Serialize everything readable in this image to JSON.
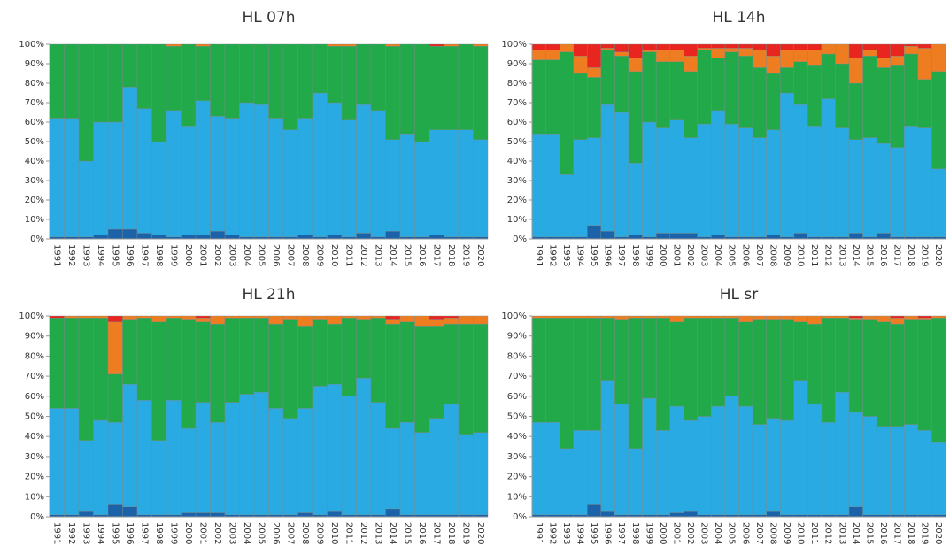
{
  "chart_data": [
    {
      "type": "bar",
      "title": "HL 07h",
      "stacked": true,
      "categories": [
        "1991",
        "1992",
        "1993",
        "1994",
        "1995",
        "1996",
        "1997",
        "1998",
        "1999",
        "2000",
        "2001",
        "2002",
        "2003",
        "2004",
        "2005",
        "2006",
        "2007",
        "2008",
        "2009",
        "2010",
        "2011",
        "2012",
        "2013",
        "2014",
        "2015",
        "2016",
        "2017",
        "2018",
        "2019",
        "2020"
      ],
      "ylim": [
        0,
        100
      ],
      "yticks": [
        {
          "value": 0,
          "label": "0%"
        },
        {
          "value": 10,
          "label": "10%"
        },
        {
          "value": 20,
          "label": "20%"
        },
        {
          "value": 30,
          "label": "30%"
        },
        {
          "value": 40,
          "label": "40%"
        },
        {
          "value": 50,
          "label": "50%"
        },
        {
          "value": 60,
          "label": "60%"
        },
        {
          "value": 70,
          "label": "70%"
        },
        {
          "value": 80,
          "label": "80%"
        },
        {
          "value": 90,
          "label": "90%"
        },
        {
          "value": 100,
          "label": "100%"
        }
      ],
      "series": [
        {
          "color": "#1b62a8",
          "values": [
            1,
            1,
            1,
            2,
            5,
            5,
            3,
            2,
            1,
            2,
            2,
            4,
            2,
            1,
            1,
            1,
            1,
            2,
            1,
            2,
            1,
            3,
            1,
            4,
            1,
            1,
            2,
            1,
            1,
            1
          ]
        },
        {
          "color": "#29aae2",
          "values": [
            61,
            61,
            39,
            58,
            55,
            73,
            64,
            48,
            65,
            56,
            69,
            59,
            60,
            69,
            68,
            61,
            55,
            60,
            74,
            68,
            60,
            66,
            65,
            47,
            53,
            49,
            54,
            55,
            55,
            50
          ]
        },
        {
          "color": "#22a94a",
          "values": [
            38,
            38,
            60,
            40,
            40,
            22,
            33,
            50,
            33,
            42,
            28,
            37,
            38,
            30,
            31,
            38,
            44,
            38,
            25,
            29,
            38,
            31,
            34,
            48,
            46,
            50,
            43,
            43,
            44,
            48
          ]
        },
        {
          "color": "#ee7d22",
          "values": [
            0,
            0,
            0,
            0,
            0,
            0,
            0,
            0,
            1,
            0,
            1,
            0,
            0,
            0,
            0,
            0,
            0,
            0,
            0,
            1,
            1,
            0,
            0,
            1,
            0,
            0,
            0,
            1,
            0,
            1
          ]
        },
        {
          "color": "#e8251e",
          "values": [
            0,
            0,
            0,
            0,
            0,
            0,
            0,
            0,
            0,
            0,
            0,
            0,
            0,
            0,
            0,
            0,
            0,
            0,
            0,
            0,
            0,
            0,
            0,
            0,
            0,
            0,
            1,
            0,
            0,
            0
          ]
        }
      ]
    },
    {
      "type": "bar",
      "title": "HL 14h",
      "stacked": true,
      "categories": [
        "1991",
        "1992",
        "1993",
        "1994",
        "1995",
        "1996",
        "1997",
        "1998",
        "1999",
        "2000",
        "2001",
        "2002",
        "2003",
        "2004",
        "2005",
        "2006",
        "2007",
        "2008",
        "2009",
        "2010",
        "2011",
        "2012",
        "2013",
        "2014",
        "2015",
        "2016",
        "2017",
        "2018",
        "2019",
        "2020"
      ],
      "ylim": [
        0,
        100
      ],
      "yticks": [
        {
          "value": 0,
          "label": "0%"
        },
        {
          "value": 10,
          "label": "10%"
        },
        {
          "value": 20,
          "label": "20%"
        },
        {
          "value": 30,
          "label": "30%"
        },
        {
          "value": 40,
          "label": "40%"
        },
        {
          "value": 50,
          "label": "50%"
        },
        {
          "value": 60,
          "label": "60%"
        },
        {
          "value": 70,
          "label": "70%"
        },
        {
          "value": 80,
          "label": "80%"
        },
        {
          "value": 90,
          "label": "90%"
        },
        {
          "value": 100,
          "label": "100%"
        }
      ],
      "series": [
        {
          "color": "#1b62a8",
          "values": [
            1,
            1,
            1,
            1,
            7,
            4,
            1,
            2,
            1,
            3,
            3,
            3,
            1,
            2,
            1,
            1,
            1,
            2,
            1,
            3,
            1,
            1,
            1,
            3,
            1,
            3,
            1,
            1,
            1,
            1
          ]
        },
        {
          "color": "#29aae2",
          "values": [
            53,
            53,
            32,
            50,
            45,
            65,
            64,
            37,
            59,
            54,
            58,
            49,
            58,
            64,
            58,
            56,
            51,
            54,
            74,
            66,
            57,
            71,
            56,
            48,
            51,
            46,
            46,
            57,
            56,
            35
          ]
        },
        {
          "color": "#22a94a",
          "values": [
            38,
            38,
            63,
            34,
            31,
            28,
            29,
            47,
            36,
            34,
            30,
            34,
            38,
            27,
            37,
            37,
            36,
            29,
            13,
            22,
            31,
            23,
            33,
            29,
            42,
            39,
            42,
            37,
            25,
            50
          ]
        },
        {
          "color": "#ee7d22",
          "values": [
            5,
            5,
            4,
            9,
            5,
            1,
            2,
            7,
            1,
            6,
            6,
            8,
            1,
            5,
            2,
            4,
            9,
            9,
            9,
            6,
            8,
            5,
            10,
            13,
            3,
            5,
            5,
            4,
            16,
            14
          ]
        },
        {
          "color": "#e8251e",
          "values": [
            3,
            3,
            0,
            6,
            12,
            2,
            4,
            7,
            3,
            3,
            3,
            6,
            2,
            2,
            2,
            2,
            3,
            6,
            3,
            3,
            3,
            0,
            0,
            7,
            3,
            7,
            6,
            1,
            2,
            0
          ]
        }
      ]
    },
    {
      "type": "bar",
      "title": "HL 21h",
      "stacked": true,
      "categories": [
        "1991",
        "1992",
        "1993",
        "1994",
        "1995",
        "1996",
        "1997",
        "1998",
        "1999",
        "2000",
        "2001",
        "2002",
        "2003",
        "2004",
        "2005",
        "2006",
        "2007",
        "2008",
        "2009",
        "2010",
        "2011",
        "2012",
        "2013",
        "2014",
        "2015",
        "2016",
        "2017",
        "2018",
        "2019",
        "2020"
      ],
      "ylim": [
        0,
        100
      ],
      "yticks": [
        {
          "value": 0,
          "label": "0%"
        },
        {
          "value": 10,
          "label": "10%"
        },
        {
          "value": 20,
          "label": "20%"
        },
        {
          "value": 30,
          "label": "30%"
        },
        {
          "value": 40,
          "label": "40%"
        },
        {
          "value": 50,
          "label": "50%"
        },
        {
          "value": 60,
          "label": "60%"
        },
        {
          "value": 70,
          "label": "70%"
        },
        {
          "value": 80,
          "label": "80%"
        },
        {
          "value": 90,
          "label": "90%"
        },
        {
          "value": 100,
          "label": "100%"
        }
      ],
      "series": [
        {
          "color": "#1b62a8",
          "values": [
            1,
            1,
            3,
            1,
            6,
            5,
            1,
            1,
            1,
            2,
            2,
            2,
            1,
            1,
            1,
            1,
            1,
            2,
            1,
            3,
            1,
            1,
            1,
            4,
            1,
            1,
            1,
            1,
            1,
            1
          ]
        },
        {
          "color": "#29aae2",
          "values": [
            53,
            53,
            35,
            47,
            41,
            61,
            57,
            37,
            57,
            42,
            55,
            45,
            56,
            60,
            61,
            53,
            48,
            52,
            64,
            63,
            59,
            68,
            56,
            40,
            46,
            41,
            48,
            55,
            40,
            41
          ]
        },
        {
          "color": "#22a94a",
          "values": [
            45,
            45,
            61,
            51,
            24,
            32,
            41,
            59,
            41,
            54,
            40,
            49,
            42,
            38,
            37,
            42,
            49,
            41,
            33,
            30,
            39,
            29,
            42,
            52,
            50,
            53,
            46,
            40,
            55,
            54
          ]
        },
        {
          "color": "#ee7d22",
          "values": [
            0,
            1,
            1,
            1,
            26,
            2,
            1,
            3,
            1,
            2,
            2,
            4,
            1,
            1,
            1,
            4,
            2,
            5,
            2,
            4,
            1,
            2,
            1,
            2,
            3,
            5,
            3,
            3,
            4,
            4
          ]
        },
        {
          "color": "#e8251e",
          "values": [
            1,
            0,
            0,
            0,
            3,
            0,
            0,
            0,
            0,
            0,
            1,
            0,
            0,
            0,
            0,
            0,
            0,
            0,
            0,
            0,
            0,
            0,
            0,
            2,
            0,
            0,
            2,
            1,
            0,
            0
          ]
        }
      ]
    },
    {
      "type": "bar",
      "title": "HL sr",
      "stacked": true,
      "categories": [
        "1991",
        "1992",
        "1993",
        "1994",
        "1995",
        "1996",
        "1997",
        "1998",
        "1999",
        "2000",
        "2001",
        "2002",
        "2003",
        "2004",
        "2005",
        "2006",
        "2007",
        "2008",
        "2009",
        "2010",
        "2011",
        "2012",
        "2013",
        "2014",
        "2015",
        "2016",
        "2017",
        "2018",
        "2019",
        "2020"
      ],
      "ylim": [
        0,
        100
      ],
      "yticks": [
        {
          "value": 0,
          "label": "0%"
        },
        {
          "value": 10,
          "label": "10%"
        },
        {
          "value": 20,
          "label": "20%"
        },
        {
          "value": 30,
          "label": "30%"
        },
        {
          "value": 40,
          "label": "40%"
        },
        {
          "value": 50,
          "label": "50%"
        },
        {
          "value": 60,
          "label": "60%"
        },
        {
          "value": 70,
          "label": "70%"
        },
        {
          "value": 80,
          "label": "80%"
        },
        {
          "value": 90,
          "label": "90%"
        },
        {
          "value": 100,
          "label": "100%"
        }
      ],
      "series": [
        {
          "color": "#1b62a8",
          "values": [
            1,
            1,
            1,
            1,
            6,
            3,
            1,
            1,
            1,
            1,
            2,
            3,
            1,
            1,
            1,
            1,
            1,
            3,
            1,
            1,
            1,
            1,
            1,
            5,
            1,
            1,
            1,
            1,
            1,
            1
          ]
        },
        {
          "color": "#29aae2",
          "values": [
            46,
            46,
            33,
            42,
            37,
            65,
            55,
            33,
            58,
            42,
            53,
            45,
            49,
            54,
            59,
            54,
            45,
            46,
            47,
            67,
            55,
            46,
            61,
            47,
            49,
            44,
            44,
            45,
            42,
            36
          ]
        },
        {
          "color": "#22a94a",
          "values": [
            52,
            52,
            65,
            56,
            56,
            31,
            42,
            65,
            40,
            56,
            42,
            51,
            49,
            44,
            39,
            42,
            52,
            49,
            50,
            29,
            40,
            52,
            37,
            46,
            48,
            52,
            51,
            52,
            55,
            62
          ]
        },
        {
          "color": "#ee7d22",
          "values": [
            1,
            1,
            1,
            1,
            1,
            1,
            2,
            1,
            1,
            1,
            3,
            1,
            1,
            1,
            1,
            3,
            2,
            2,
            2,
            3,
            4,
            1,
            1,
            1,
            2,
            3,
            3,
            2,
            1,
            1
          ]
        },
        {
          "color": "#e8251e",
          "values": [
            0,
            0,
            0,
            0,
            0,
            0,
            0,
            0,
            0,
            0,
            0,
            0,
            0,
            0,
            0,
            0,
            0,
            0,
            0,
            0,
            0,
            0,
            0,
            1,
            0,
            0,
            1,
            0,
            1,
            0
          ]
        }
      ]
    }
  ]
}
